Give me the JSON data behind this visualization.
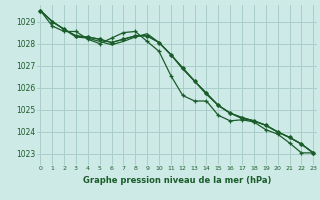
{
  "title": "Graphe pression niveau de la mer (hPa)",
  "background_color": "#ceeae6",
  "grid_color": "#aaceca",
  "line_color": "#1a5c2a",
  "x_ticks": [
    0,
    1,
    2,
    3,
    4,
    5,
    6,
    7,
    8,
    9,
    10,
    11,
    12,
    13,
    14,
    15,
    16,
    17,
    18,
    19,
    20,
    21,
    22,
    23
  ],
  "y_ticks": [
    1023,
    1024,
    1025,
    1026,
    1027,
    1028,
    1029
  ],
  "ylim": [
    1022.5,
    1029.75
  ],
  "xlim": [
    -0.3,
    23.3
  ],
  "line1_x": [
    0,
    1,
    2,
    3,
    4,
    5,
    6,
    7,
    8,
    9,
    10,
    11,
    12,
    13,
    14,
    15,
    16,
    17,
    18,
    19,
    20,
    21,
    22,
    23
  ],
  "line1_y": [
    1029.5,
    1029.0,
    1028.65,
    1028.35,
    1028.3,
    1028.2,
    1028.05,
    1028.2,
    1028.35,
    1028.35,
    1028.05,
    1027.5,
    1026.9,
    1026.3,
    1025.75,
    1025.2,
    1024.85,
    1024.65,
    1024.5,
    1024.3,
    1024.0,
    1023.75,
    1023.45,
    1023.05
  ],
  "line2_x": [
    0,
    1,
    2,
    3,
    4,
    5,
    6,
    7,
    8,
    9,
    10,
    11,
    12,
    13,
    14,
    15,
    16,
    17,
    18,
    19,
    20,
    21,
    22,
    23
  ],
  "line2_y": [
    1029.5,
    1029.0,
    1028.65,
    1028.35,
    1028.3,
    1028.2,
    1028.05,
    1028.2,
    1028.35,
    1028.35,
    1028.05,
    1027.5,
    1026.9,
    1026.3,
    1025.75,
    1025.2,
    1024.85,
    1024.65,
    1024.5,
    1024.3,
    1024.0,
    1023.75,
    1023.45,
    1023.05
  ],
  "line3_x": [
    0,
    1,
    2,
    3,
    4,
    5,
    6,
    7,
    8,
    9,
    10,
    11,
    12,
    13,
    14,
    15,
    16,
    17,
    18,
    19,
    20,
    21,
    22,
    23
  ],
  "line3_y": [
    1029.5,
    1028.8,
    1028.55,
    1028.55,
    1028.2,
    1028.0,
    1028.25,
    1028.5,
    1028.55,
    1028.1,
    1027.65,
    1026.55,
    1025.65,
    1025.4,
    1025.4,
    1024.75,
    1024.5,
    1024.55,
    1024.45,
    1024.1,
    1023.9,
    1023.5,
    1023.05,
    1023.05
  ],
  "line4_x": [
    0,
    1,
    2,
    3,
    4,
    5,
    6,
    7,
    8,
    9,
    10,
    11,
    12,
    13,
    14,
    15,
    16,
    17,
    18,
    19,
    20,
    21,
    22,
    23
  ],
  "line4_y": [
    1029.5,
    1029.0,
    1028.65,
    1028.3,
    1028.25,
    1028.1,
    1027.95,
    1028.1,
    1028.3,
    1028.45,
    1028.05,
    1027.5,
    1026.85,
    1026.3,
    1025.7,
    1025.2,
    1024.85,
    1024.6,
    1024.5,
    1024.3,
    1024.0,
    1023.75,
    1023.45,
    1023.05
  ]
}
